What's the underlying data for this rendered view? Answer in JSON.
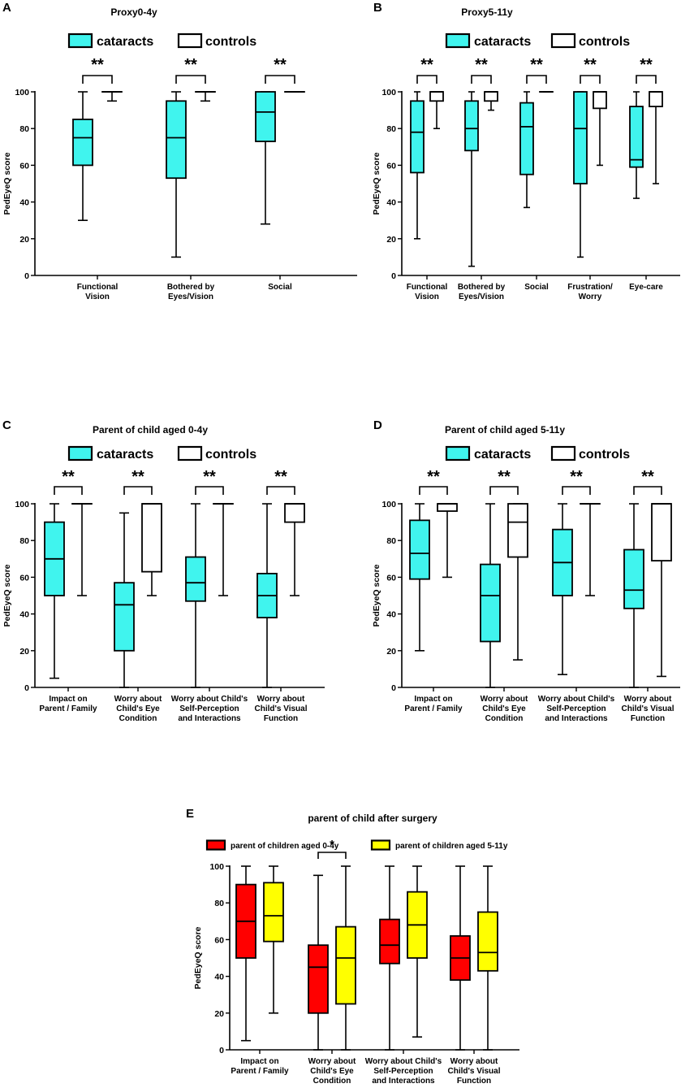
{
  "chart_data": [
    {
      "id": "A",
      "panel_letter": "A",
      "type": "box",
      "title": "Proxy0-4y",
      "ylabel": "PedEyeQ score",
      "ylim": [
        0,
        100
      ],
      "yticks": [
        0,
        20,
        40,
        60,
        80,
        100
      ],
      "legend": [
        {
          "name": "cataracts",
          "color": "#40F4EE"
        },
        {
          "name": "controls",
          "color": "#FFFFFF"
        }
      ],
      "categories": [
        "Functional\nVision",
        "Bothered by\nEyes/Vision",
        "Social"
      ],
      "series": [
        {
          "name": "cataracts",
          "color": "#40F4EE",
          "boxes": [
            [
              30,
              60,
              75,
              85,
              100
            ],
            [
              10,
              53,
              75,
              95,
              100
            ],
            [
              28,
              73,
              89,
              100,
              100
            ]
          ]
        },
        {
          "name": "controls",
          "color": "#FFFFFF",
          "boxes": [
            [
              95,
              100,
              100,
              100,
              100
            ],
            [
              95,
              100,
              100,
              100,
              100
            ],
            [
              100,
              100,
              100,
              100,
              100
            ]
          ]
        }
      ],
      "significance": [
        "**",
        "**",
        "**"
      ]
    },
    {
      "id": "B",
      "panel_letter": "B",
      "type": "box",
      "title": "Proxy5-11y",
      "ylabel": "PedEyeQ score",
      "ylim": [
        0,
        100
      ],
      "yticks": [
        0,
        20,
        40,
        60,
        80,
        100
      ],
      "legend": [
        {
          "name": "cataracts",
          "color": "#40F4EE"
        },
        {
          "name": "controls",
          "color": "#FFFFFF"
        }
      ],
      "categories": [
        "Functional\nVision",
        "Bothered by\nEyes/Vision",
        "Social",
        "Frustration/\nWorry",
        "Eye-care"
      ],
      "series": [
        {
          "name": "cataracts",
          "color": "#40F4EE",
          "boxes": [
            [
              20,
              56,
              78,
              95,
              100
            ],
            [
              5,
              68,
              80,
              95,
              100
            ],
            [
              37,
              55,
              81,
              94,
              100
            ],
            [
              10,
              50,
              80,
              100,
              100
            ],
            [
              42,
              59,
              63,
              92,
              100
            ]
          ]
        },
        {
          "name": "controls",
          "color": "#FFFFFF",
          "boxes": [
            [
              80,
              95,
              100,
              100,
              100
            ],
            [
              90,
              95,
              100,
              100,
              100
            ],
            [
              100,
              100,
              100,
              100,
              100
            ],
            [
              60,
              91,
              100,
              100,
              100
            ],
            [
              50,
              92,
              100,
              100,
              100
            ]
          ]
        }
      ],
      "significance": [
        "**",
        "**",
        "**",
        "**",
        "**"
      ]
    },
    {
      "id": "C",
      "panel_letter": "C",
      "type": "box",
      "title": "Parent of child aged 0-4y",
      "ylabel": "PedEyeQ score",
      "ylim": [
        0,
        100
      ],
      "yticks": [
        0,
        20,
        40,
        60,
        80,
        100
      ],
      "legend": [
        {
          "name": "cataracts",
          "color": "#40F4EE"
        },
        {
          "name": "controls",
          "color": "#FFFFFF"
        }
      ],
      "categories": [
        "Impact on\nParent / Family",
        "Worry about\nChild's Eye\nCondition",
        "Worry about Child's\nSelf-Perception\nand Interactions",
        "Worry about\nChild's Visual\nFunction"
      ],
      "series": [
        {
          "name": "cataracts",
          "color": "#40F4EE",
          "boxes": [
            [
              5,
              50,
              70,
              90,
              100
            ],
            [
              0,
              20,
              45,
              57,
              95
            ],
            [
              0,
              47,
              57,
              71,
              100
            ],
            [
              0,
              38,
              50,
              62,
              100
            ]
          ]
        },
        {
          "name": "controls",
          "color": "#FFFFFF",
          "boxes": [
            [
              50,
              100,
              100,
              100,
              100
            ],
            [
              50,
              63,
              100,
              100,
              100
            ],
            [
              50,
              100,
              100,
              100,
              100
            ],
            [
              50,
              90,
              100,
              100,
              100
            ]
          ]
        }
      ],
      "significance": [
        "**",
        "**",
        "**",
        "**"
      ]
    },
    {
      "id": "D",
      "panel_letter": "D",
      "type": "box",
      "title": "Parent of child aged 5-11y",
      "ylabel": "PedEyeQ score",
      "ylim": [
        0,
        100
      ],
      "yticks": [
        0,
        20,
        40,
        60,
        80,
        100
      ],
      "legend": [
        {
          "name": "cataracts",
          "color": "#40F4EE"
        },
        {
          "name": "controls",
          "color": "#FFFFFF"
        }
      ],
      "categories": [
        "Impact on\nParent / Family",
        "Worry about\nChild's Eye\nCondition",
        "Worry about Child's\nSelf-Perception\nand Interactions",
        "Worry about\nChild's Visual\nFunction"
      ],
      "series": [
        {
          "name": "cataracts",
          "color": "#40F4EE",
          "boxes": [
            [
              20,
              59,
              73,
              91,
              100
            ],
            [
              0,
              25,
              50,
              67,
              100
            ],
            [
              7,
              50,
              68,
              86,
              100
            ],
            [
              0,
              43,
              53,
              75,
              100
            ]
          ]
        },
        {
          "name": "controls",
          "color": "#FFFFFF",
          "boxes": [
            [
              60,
              96,
              100,
              100,
              100
            ],
            [
              15,
              71,
              90,
              100,
              100
            ],
            [
              50,
              100,
              100,
              100,
              100
            ],
            [
              6,
              69,
              100,
              100,
              100
            ]
          ]
        }
      ],
      "significance": [
        "**",
        "**",
        "**",
        "**"
      ]
    },
    {
      "id": "E",
      "panel_letter": "E",
      "type": "box",
      "title": "parent of child after surgery",
      "ylabel": "PedEyeQ score",
      "ylim": [
        0,
        100
      ],
      "yticks": [
        0,
        20,
        40,
        60,
        80,
        100
      ],
      "legend": [
        {
          "name": "parent of children aged 0-4y",
          "color": "#FF0000"
        },
        {
          "name": "parent of children aged 5-11y",
          "color": "#FFFF00"
        }
      ],
      "categories": [
        "Impact on\nParent / Family",
        "Worry about\nChild's Eye\nCondition",
        "Worry about Child's\nSelf-Perception\nand Interactions",
        "Worry about\nChild's Visual\nFunction"
      ],
      "series": [
        {
          "name": "parent of children aged 0-4y",
          "color": "#FF0000",
          "boxes": [
            [
              5,
              50,
              70,
              90,
              100
            ],
            [
              0,
              20,
              45,
              57,
              95
            ],
            [
              0,
              47,
              57,
              71,
              100
            ],
            [
              0,
              38,
              50,
              62,
              100
            ]
          ]
        },
        {
          "name": "parent of children aged 5-11y",
          "color": "#FFFF00",
          "boxes": [
            [
              20,
              59,
              73,
              91,
              100
            ],
            [
              0,
              25,
              50,
              67,
              100
            ],
            [
              7,
              50,
              68,
              86,
              100
            ],
            [
              0,
              43,
              53,
              75,
              100
            ]
          ]
        }
      ],
      "significance": [
        "",
        "*",
        "",
        ""
      ]
    }
  ]
}
